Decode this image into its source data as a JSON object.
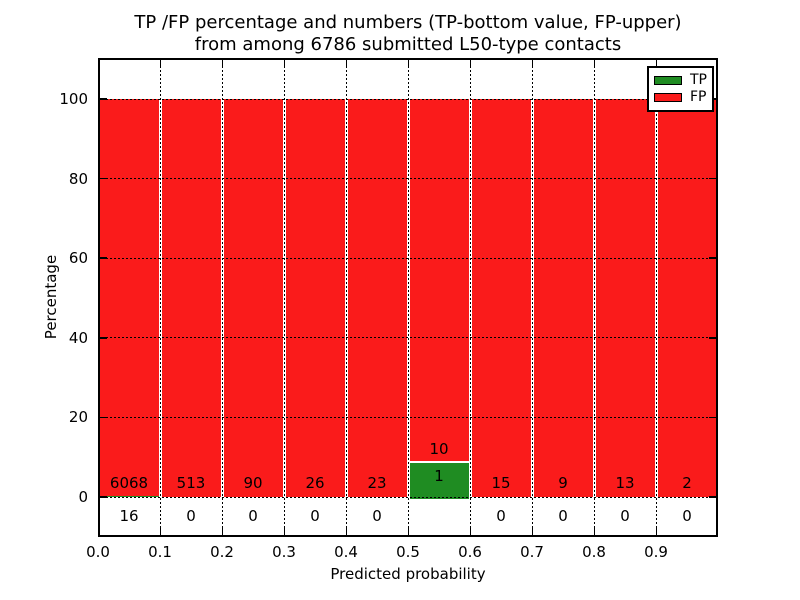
{
  "title": {
    "line1": "TP /FP percentage and numbers (TP-bottom value, FP-upper)",
    "line2": "from among 6786 submitted L50-type contacts"
  },
  "axes": {
    "xlabel": "Predicted probability",
    "ylabel": "Percentage",
    "xtick_labels": [
      "0.0",
      "0.1",
      "0.2",
      "0.3",
      "0.4",
      "0.5",
      "0.6",
      "0.7",
      "0.8",
      "0.9"
    ],
    "ytick_labels": [
      "0",
      "20",
      "40",
      "60",
      "80",
      "100"
    ],
    "ytick_values": [
      0,
      20,
      40,
      60,
      80,
      100
    ]
  },
  "legend": {
    "items": [
      {
        "label": "TP",
        "color": "#1f8c22"
      },
      {
        "label": "FP",
        "color": "#fa1b1b"
      }
    ]
  },
  "chart_data": {
    "type": "bar",
    "stacked": true,
    "title": "TP /FP percentage and numbers (TP-bottom value, FP-upper) from among 6786 submitted L50-type contacts",
    "xlabel": "Predicted probability",
    "ylabel": "Percentage",
    "xlim": [
      0,
      1
    ],
    "ylim": [
      -11,
      110
    ],
    "grid": true,
    "legend_position": "upper right",
    "total_contacts": 6786,
    "colors": {
      "tp": "#1f8c22",
      "fp": "#fa1b1b"
    },
    "categories": [
      "0.0-0.1",
      "0.1-0.2",
      "0.2-0.3",
      "0.3-0.4",
      "0.4-0.5",
      "0.5-0.6",
      "0.6-0.7",
      "0.7-0.8",
      "0.8-0.9",
      "0.9-1.0"
    ],
    "series": [
      {
        "name": "TP",
        "values": [
          16,
          0,
          0,
          0,
          0,
          1,
          0,
          0,
          0,
          0
        ]
      },
      {
        "name": "FP",
        "values": [
          6068,
          513,
          90,
          26,
          23,
          10,
          15,
          9,
          13,
          2
        ]
      }
    ],
    "bins": [
      {
        "range": [
          0.0,
          0.1
        ],
        "tp": 16,
        "fp": 6068,
        "tp_label_pos": "below_axis",
        "fp_label_pos": "bottom_inside"
      },
      {
        "range": [
          0.1,
          0.2
        ],
        "tp": 0,
        "fp": 513,
        "tp_label_pos": "below_axis",
        "fp_label_pos": "bottom_inside"
      },
      {
        "range": [
          0.2,
          0.3
        ],
        "tp": 0,
        "fp": 90,
        "tp_label_pos": "below_axis",
        "fp_label_pos": "bottom_inside"
      },
      {
        "range": [
          0.3,
          0.4
        ],
        "tp": 0,
        "fp": 26,
        "tp_label_pos": "below_axis",
        "fp_label_pos": "bottom_inside"
      },
      {
        "range": [
          0.4,
          0.5
        ],
        "tp": 0,
        "fp": 23,
        "tp_label_pos": "below_axis",
        "fp_label_pos": "bottom_inside"
      },
      {
        "range": [
          0.5,
          0.6
        ],
        "tp": 1,
        "fp": 10,
        "tp_label_pos": "inside_green",
        "fp_label_pos": "above_green"
      },
      {
        "range": [
          0.6,
          0.7
        ],
        "tp": 0,
        "fp": 15,
        "tp_label_pos": "below_axis",
        "fp_label_pos": "bottom_inside"
      },
      {
        "range": [
          0.7,
          0.8
        ],
        "tp": 0,
        "fp": 9,
        "tp_label_pos": "below_axis",
        "fp_label_pos": "bottom_inside"
      },
      {
        "range": [
          0.8,
          0.9
        ],
        "tp": 0,
        "fp": 13,
        "tp_label_pos": "below_axis",
        "fp_label_pos": "bottom_inside"
      },
      {
        "range": [
          0.9,
          1.0
        ],
        "tp": 0,
        "fp": 2,
        "tp_label_pos": "below_axis",
        "fp_label_pos": "bottom_inside"
      }
    ]
  }
}
